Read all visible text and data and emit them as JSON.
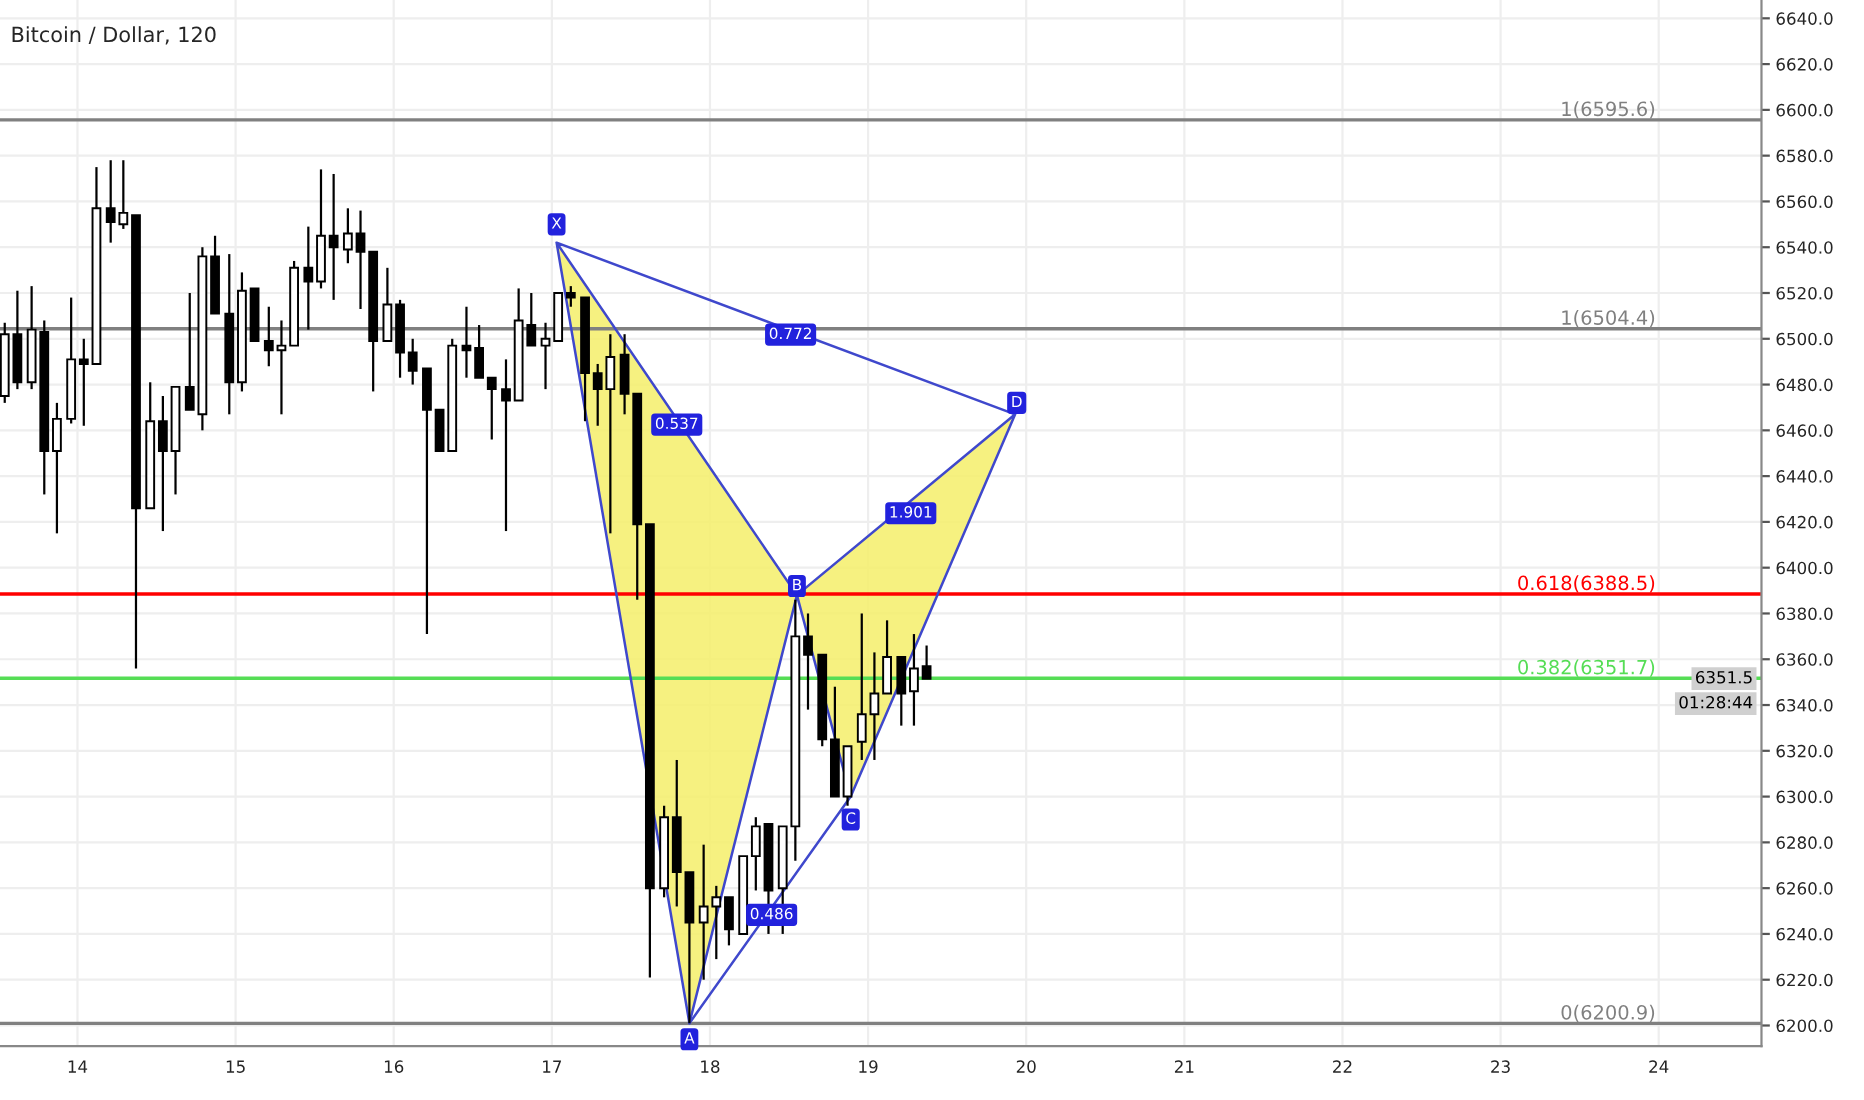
{
  "chart_data": {
    "type": "candlestick",
    "title": "Bitcoin / Dollar, 120",
    "x": [
      13.54,
      13.62,
      13.71,
      13.79,
      13.87,
      13.96,
      14.04,
      14.12,
      14.21,
      14.29,
      14.37,
      14.46,
      14.54,
      14.62,
      14.71,
      14.79,
      14.87,
      14.96,
      15.04,
      15.12,
      15.21,
      15.29,
      15.37,
      15.46,
      15.54,
      15.62,
      15.71,
      15.79,
      15.87,
      15.96,
      16.04,
      16.12,
      16.21,
      16.29,
      16.37,
      16.46,
      16.54,
      16.62,
      16.71,
      16.79,
      16.87,
      16.96,
      17.04,
      17.12,
      17.21,
      17.29,
      17.37,
      17.46,
      17.54,
      17.62,
      17.71,
      17.79,
      17.87,
      17.96,
      18.04,
      18.12,
      18.21,
      18.29,
      18.37,
      18.46,
      18.54,
      18.62,
      18.71,
      18.79,
      18.87,
      18.96,
      19.04,
      19.12,
      19.21,
      19.29,
      19.37
    ],
    "ohlc": [
      [
        6475,
        6507,
        6472,
        6502
      ],
      [
        6502,
        6521,
        6478,
        6481
      ],
      [
        6481,
        6523,
        6478,
        6504
      ],
      [
        6503,
        6508,
        6432,
        6451
      ],
      [
        6451,
        6472,
        6415,
        6465
      ],
      [
        6465,
        6518,
        6463,
        6491
      ],
      [
        6491,
        6500,
        6462,
        6489
      ],
      [
        6489,
        6575,
        6489,
        6557
      ],
      [
        6557,
        6578,
        6542,
        6551
      ],
      [
        6550,
        6578,
        6548,
        6555
      ],
      [
        6554,
        6554,
        6356,
        6426
      ],
      [
        6426,
        6481,
        6426,
        6464
      ],
      [
        6464,
        6475,
        6416,
        6451
      ],
      [
        6451,
        6479,
        6432,
        6479
      ],
      [
        6479,
        6520,
        6469,
        6469
      ],
      [
        6467,
        6540,
        6460,
        6536
      ],
      [
        6536,
        6545,
        6511,
        6511
      ],
      [
        6511,
        6537,
        6467,
        6481
      ],
      [
        6481,
        6529,
        6477,
        6521
      ],
      [
        6522,
        6522,
        6499,
        6499
      ],
      [
        6499,
        6514,
        6488,
        6495
      ],
      [
        6495,
        6508,
        6467,
        6497
      ],
      [
        6497,
        6534,
        6497,
        6531
      ],
      [
        6531,
        6549,
        6504,
        6525
      ],
      [
        6525,
        6574,
        6522,
        6545
      ],
      [
        6545,
        6572,
        6517,
        6540
      ],
      [
        6539,
        6557,
        6533,
        6546
      ],
      [
        6546,
        6556,
        6513,
        6538
      ],
      [
        6538,
        6538,
        6477,
        6499
      ],
      [
        6499,
        6531,
        6499,
        6515
      ],
      [
        6515,
        6517,
        6483,
        6494
      ],
      [
        6494,
        6500,
        6480,
        6486
      ],
      [
        6487,
        6487,
        6371,
        6469
      ],
      [
        6469,
        6469,
        6451,
        6451
      ],
      [
        6451,
        6500,
        6451,
        6497
      ],
      [
        6497,
        6514,
        6483,
        6495
      ],
      [
        6496,
        6506,
        6483,
        6483
      ],
      [
        6483,
        6483,
        6456,
        6478
      ],
      [
        6478,
        6491,
        6416,
        6473
      ],
      [
        6473,
        6522,
        6473,
        6508
      ],
      [
        6506,
        6520,
        6497,
        6497
      ],
      [
        6497,
        6507,
        6478,
        6500
      ],
      [
        6499,
        6520,
        6499,
        6520
      ],
      [
        6520,
        6523,
        6514,
        6518
      ],
      [
        6518,
        6518,
        6464,
        6485
      ],
      [
        6485,
        6489,
        6462,
        6478
      ],
      [
        6478,
        6502,
        6415,
        6492
      ],
      [
        6493,
        6502,
        6467,
        6476
      ],
      [
        6476,
        6476,
        6386,
        6419
      ],
      [
        6419,
        6419,
        6221,
        6260
      ],
      [
        6260,
        6296,
        6256,
        6291
      ],
      [
        6291,
        6316,
        6252,
        6267
      ],
      [
        6267,
        6267,
        6201,
        6245
      ],
      [
        6245,
        6279,
        6220,
        6252
      ],
      [
        6252,
        6261,
        6229,
        6256
      ],
      [
        6256,
        6256,
        6235,
        6242
      ],
      [
        6240,
        6274,
        6240,
        6274
      ],
      [
        6274,
        6291,
        6259,
        6287
      ],
      [
        6288,
        6288,
        6240,
        6259
      ],
      [
        6260,
        6287,
        6240,
        6287
      ],
      [
        6287,
        6386,
        6272,
        6370
      ],
      [
        6370,
        6380,
        6338,
        6362
      ],
      [
        6362,
        6362,
        6322,
        6325
      ],
      [
        6325,
        6348,
        6300,
        6300
      ],
      [
        6300,
        6322,
        6296,
        6322
      ],
      [
        6324,
        6380,
        6316,
        6336
      ],
      [
        6336,
        6363,
        6316,
        6345
      ],
      [
        6345,
        6377,
        6345,
        6361
      ],
      [
        6361,
        6361,
        6331,
        6345
      ],
      [
        6346,
        6371,
        6331,
        6356
      ],
      [
        6357,
        6366,
        6351.5,
        6351.5
      ]
    ],
    "series": [
      {
        "type": "line",
        "color": "#3f48cc",
        "x": [
          17.03,
          17.87,
          18.55,
          17.03,
          19.93,
          18.55,
          18.89,
          19.93
        ],
        "values": [
          6542,
          6201,
          6388,
          6542,
          6467,
          6388,
          6300,
          6467
        ]
      },
      {
        "type": "line",
        "color": "#3f48cc",
        "x": [
          17.87,
          18.89
        ],
        "values": [
          6201,
          6300
        ]
      }
    ],
    "ref_lines": [
      {
        "axis": "y",
        "value": 6595.6,
        "label": "1(6595.6)",
        "color": "#808080"
      },
      {
        "axis": "y",
        "value": 6504.4,
        "label": "1(6504.4)",
        "color": "#808080"
      },
      {
        "axis": "y",
        "value": 6388.5,
        "label": "0.618(6388.5)",
        "color": "#ff0000"
      },
      {
        "axis": "y",
        "value": 6351.7,
        "label": "0.382(6351.7)",
        "color": "#55dd55"
      },
      {
        "axis": "y",
        "value": 6200.9,
        "label": "0(6200.9)",
        "color": "#808080"
      }
    ],
    "annotations": [
      {
        "text": "X",
        "x": 17.03,
        "y": 6550
      },
      {
        "text": "A",
        "x": 17.87,
        "y": 6194
      },
      {
        "text": "B",
        "x": 18.55,
        "y": 6392
      },
      {
        "text": "C",
        "x": 18.89,
        "y": 6290
      },
      {
        "text": "D",
        "x": 19.94,
        "y": 6472
      },
      {
        "text": "0.537",
        "x": 17.79,
        "y": 6462.5
      },
      {
        "text": "0.772",
        "x": 18.51,
        "y": 6501.8
      },
      {
        "text": "1.901",
        "x": 19.27,
        "y": 6423.8
      },
      {
        "text": "0.486",
        "x": 18.39,
        "y": 6248.3
      },
      "6351.5",
      "01:28:44"
    ],
    "xlim": [
      13.51,
      24.65
    ],
    "xticks": [
      14,
      15,
      16,
      17,
      18,
      19,
      20,
      21,
      22,
      23,
      24
    ],
    "ylim": [
      6191,
      6648
    ],
    "yticks": [
      {
        "value": 6200,
        "label": "6200.0"
      },
      {
        "value": 6220,
        "label": "6220.0"
      },
      {
        "value": 6240,
        "label": "6240.0"
      },
      {
        "value": 6260,
        "label": "6260.0"
      },
      {
        "value": 6280,
        "label": "6280.0"
      },
      {
        "value": 6300,
        "label": "6300.0"
      },
      {
        "value": 6320,
        "label": "6320.0"
      },
      {
        "value": 6340,
        "label": "6340.0"
      },
      {
        "value": 6360,
        "label": "6360.0"
      },
      {
        "value": 6380,
        "label": "6380.0"
      },
      {
        "value": 6400,
        "label": "6400.0"
      },
      {
        "value": 6420,
        "label": "6420.0"
      },
      {
        "value": 6440,
        "label": "6440.0"
      },
      {
        "value": 6460,
        "label": "6460.0"
      },
      {
        "value": 6480,
        "label": "6480.0"
      },
      {
        "value": 6500,
        "label": "6500.0"
      },
      {
        "value": 6520,
        "label": "6520.0"
      },
      {
        "value": 6540,
        "label": "6540.0"
      },
      {
        "value": 6560,
        "label": "6560.0"
      },
      {
        "value": 6580,
        "label": "6580.0"
      },
      {
        "value": 6600,
        "label": "6600.0"
      },
      {
        "value": 6620,
        "label": "6620.0"
      },
      {
        "value": 6640,
        "label": "6640.0"
      }
    ],
    "grid": true,
    "marker": "none"
  }
}
